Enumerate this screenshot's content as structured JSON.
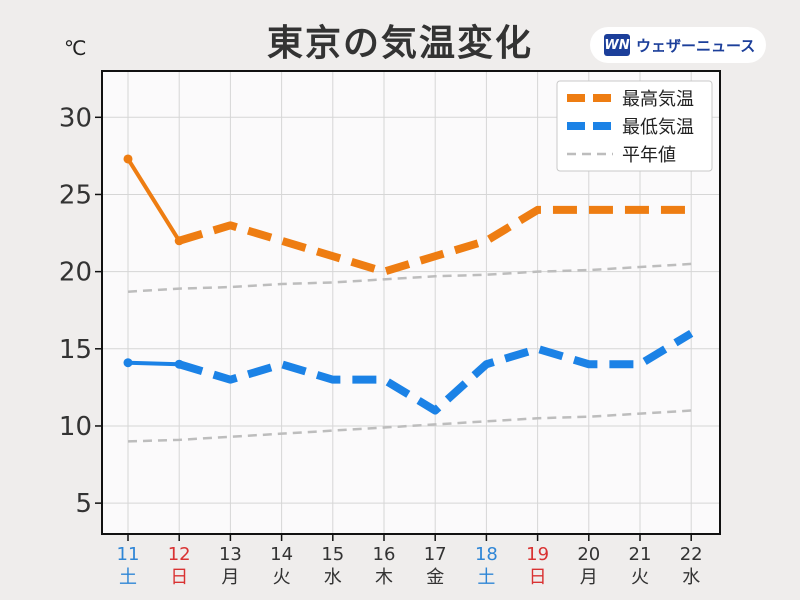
{
  "title": "東京の気温変化",
  "logo": {
    "mark": "WN",
    "text": "ウェザーニュース"
  },
  "unit": "℃",
  "chart_data": {
    "type": "line",
    "x": [
      {
        "day": "11",
        "dow": "土",
        "color": "#2f86d6"
      },
      {
        "day": "12",
        "dow": "日",
        "color": "#d93232"
      },
      {
        "day": "13",
        "dow": "月",
        "color": "#333333"
      },
      {
        "day": "14",
        "dow": "火",
        "color": "#333333"
      },
      {
        "day": "15",
        "dow": "水",
        "color": "#333333"
      },
      {
        "day": "16",
        "dow": "木",
        "color": "#333333"
      },
      {
        "day": "17",
        "dow": "金",
        "color": "#333333"
      },
      {
        "day": "18",
        "dow": "土",
        "color": "#2f86d6"
      },
      {
        "day": "19",
        "dow": "日",
        "color": "#d93232"
      },
      {
        "day": "20",
        "dow": "月",
        "color": "#333333"
      },
      {
        "day": "21",
        "dow": "火",
        "color": "#333333"
      },
      {
        "day": "22",
        "dow": "水",
        "color": "#333333"
      }
    ],
    "ylim": [
      3,
      33
    ],
    "yticks": [
      5,
      10,
      15,
      20,
      25,
      30
    ],
    "grid": true,
    "legend_position": "top-right",
    "observed_until_index": 1,
    "series": [
      {
        "name": "最高気温",
        "color": "#ee7d12",
        "values": [
          27.3,
          22,
          23,
          22,
          21,
          20,
          21,
          22,
          24,
          24,
          24,
          24
        ]
      },
      {
        "name": "最低気温",
        "color": "#1b82e6",
        "values": [
          14.1,
          14,
          13,
          14,
          13,
          13,
          11,
          14,
          15,
          14,
          14,
          16
        ]
      },
      {
        "name": "平年値",
        "color": "#bdbdbd",
        "values": [
          18.7,
          18.9,
          19.0,
          19.2,
          19.3,
          19.5,
          19.7,
          19.8,
          20.0,
          20.1,
          20.3,
          20.5
        ]
      },
      {
        "name": "",
        "color": "#bdbdbd",
        "values": [
          9.0,
          9.1,
          9.3,
          9.5,
          9.7,
          9.9,
          10.1,
          10.3,
          10.5,
          10.6,
          10.8,
          11.0
        ]
      }
    ]
  }
}
